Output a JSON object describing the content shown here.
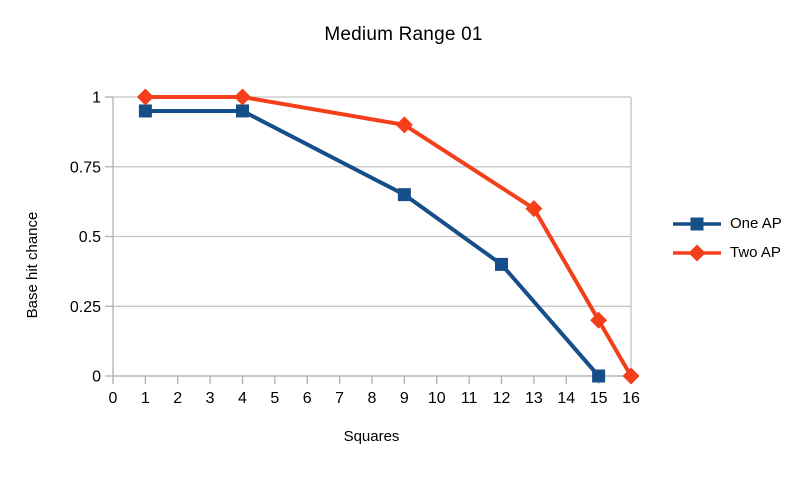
{
  "chart_data": {
    "type": "line",
    "title": "Medium Range 01",
    "xlabel": "Squares",
    "ylabel": "Base hit chance",
    "xlim": [
      0,
      16
    ],
    "ylim": [
      0,
      1
    ],
    "x_ticks": [
      0,
      1,
      2,
      3,
      4,
      5,
      6,
      7,
      8,
      9,
      10,
      11,
      12,
      13,
      14,
      15,
      16
    ],
    "y_ticks": [
      0,
      0.25,
      0.5,
      0.75,
      1
    ],
    "y_tick_labels": [
      "0",
      "0.25",
      "0.5",
      "0.75",
      "1"
    ],
    "grid": "horizontal-only",
    "legend_position": "right",
    "series": [
      {
        "name": "One AP",
        "color": "#164e8a",
        "marker": "square",
        "points": [
          [
            1,
            0.95
          ],
          [
            4,
            0.95
          ],
          [
            9,
            0.65
          ],
          [
            12,
            0.4
          ],
          [
            15,
            0
          ]
        ]
      },
      {
        "name": "Two AP",
        "color": "#f43f1a",
        "marker": "diamond",
        "points": [
          [
            1,
            1
          ],
          [
            4,
            1
          ],
          [
            9,
            0.9
          ],
          [
            13,
            0.6
          ],
          [
            15,
            0.2
          ],
          [
            16,
            0
          ]
        ]
      }
    ],
    "colors": {
      "background": "#ffffff",
      "grid_line": "#c3c3c3",
      "axis_line": "#b0b0b0",
      "text": "#000000"
    }
  }
}
